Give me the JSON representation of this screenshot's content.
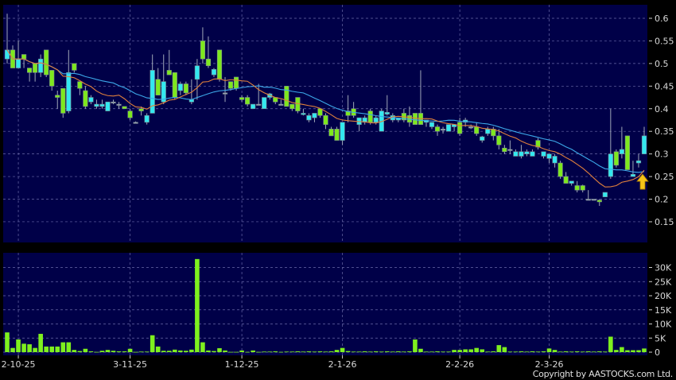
{
  "chart_data": [
    {
      "type": "candlestick",
      "panel": "price",
      "ylim": [
        0.1,
        0.63
      ],
      "y_ticks": [
        "0.15",
        "0.2",
        "0.25",
        "0.3",
        "0.35",
        "0.4",
        "0.45",
        "0.5",
        "0.55",
        "0.6"
      ],
      "grid": true,
      "colors": {
        "up": "#33e8f0",
        "down": "#7ee81e",
        "ma_short": "#e0803c",
        "ma_long": "#3ca8e8",
        "background": "#000048",
        "marker": "#f5c518"
      },
      "moving_averages": [
        "short",
        "long"
      ],
      "last_marker": "up-arrow",
      "ohlc": [
        [
          0.51,
          0.61,
          0.5,
          0.53
        ],
        [
          0.53,
          0.54,
          0.49,
          0.49
        ],
        [
          0.49,
          0.55,
          0.49,
          0.51
        ],
        [
          0.52,
          0.52,
          0.49,
          0.51
        ],
        [
          0.49,
          0.49,
          0.46,
          0.48
        ],
        [
          0.5,
          0.5,
          0.46,
          0.48
        ],
        [
          0.48,
          0.52,
          0.47,
          0.51
        ],
        [
          0.53,
          0.53,
          0.47,
          0.475
        ],
        [
          0.485,
          0.485,
          0.44,
          0.45
        ],
        [
          0.43,
          0.44,
          0.4,
          0.425
        ],
        [
          0.445,
          0.445,
          0.38,
          0.39
        ],
        [
          0.395,
          0.53,
          0.39,
          0.48
        ],
        [
          0.5,
          0.5,
          0.48,
          0.485
        ],
        [
          0.46,
          0.46,
          0.43,
          0.445
        ],
        [
          0.44,
          0.45,
          0.4,
          0.405
        ],
        [
          0.415,
          0.43,
          0.41,
          0.425
        ],
        [
          0.405,
          0.42,
          0.4,
          0.41
        ],
        [
          0.405,
          0.42,
          0.4,
          0.41
        ],
        [
          0.395,
          0.415,
          0.395,
          0.415
        ],
        [
          0.415,
          0.42,
          0.41,
          0.415
        ],
        [
          0.41,
          0.415,
          0.4,
          0.41
        ],
        [
          0.405,
          0.405,
          0.4,
          0.4
        ],
        [
          0.395,
          0.4,
          0.375,
          0.38
        ],
        [
          0.37,
          0.372,
          0.368,
          0.37
        ],
        [
          0.4,
          0.405,
          0.385,
          0.395
        ],
        [
          0.37,
          0.39,
          0.365,
          0.385
        ],
        [
          0.39,
          0.52,
          0.39,
          0.485
        ],
        [
          0.465,
          0.49,
          0.43,
          0.43
        ],
        [
          0.415,
          0.52,
          0.41,
          0.46
        ],
        [
          0.485,
          0.53,
          0.475,
          0.475
        ],
        [
          0.48,
          0.48,
          0.42,
          0.425
        ],
        [
          0.44,
          0.46,
          0.43,
          0.455
        ],
        [
          0.455,
          0.46,
          0.43,
          0.435
        ],
        [
          0.415,
          0.465,
          0.41,
          0.42
        ],
        [
          0.465,
          0.51,
          0.42,
          0.495
        ],
        [
          0.55,
          0.58,
          0.5,
          0.51
        ],
        [
          0.51,
          0.56,
          0.49,
          0.495
        ],
        [
          0.475,
          0.49,
          0.47,
          0.487
        ],
        [
          0.53,
          0.53,
          0.46,
          0.465
        ],
        [
          0.435,
          0.47,
          0.415,
          0.435
        ],
        [
          0.46,
          0.46,
          0.44,
          0.445
        ],
        [
          0.47,
          0.47,
          0.44,
          0.445
        ],
        [
          0.425,
          0.43,
          0.415,
          0.42
        ],
        [
          0.425,
          0.43,
          0.405,
          0.41
        ],
        [
          0.4,
          0.41,
          0.4,
          0.41
        ],
        [
          0.41,
          0.455,
          0.41,
          0.41
        ],
        [
          0.4,
          0.425,
          0.4,
          0.425
        ],
        [
          0.425,
          0.435,
          0.42,
          0.433
        ],
        [
          0.425,
          0.425,
          0.41,
          0.415
        ],
        [
          0.41,
          0.42,
          0.41,
          0.41
        ],
        [
          0.45,
          0.45,
          0.405,
          0.405
        ],
        [
          0.41,
          0.41,
          0.395,
          0.4
        ],
        [
          0.425,
          0.425,
          0.39,
          0.395
        ],
        [
          0.387,
          0.4,
          0.385,
          0.39
        ],
        [
          0.375,
          0.39,
          0.37,
          0.385
        ],
        [
          0.38,
          0.39,
          0.37,
          0.39
        ],
        [
          0.4,
          0.4,
          0.38,
          0.385
        ],
        [
          0.385,
          0.39,
          0.355,
          0.365
        ],
        [
          0.355,
          0.36,
          0.34,
          0.34
        ],
        [
          0.355,
          0.36,
          0.33,
          0.33
        ],
        [
          0.33,
          0.37,
          0.32,
          0.37
        ],
        [
          0.395,
          0.43,
          0.37,
          0.385
        ],
        [
          0.4,
          0.415,
          0.38,
          0.385
        ],
        [
          0.365,
          0.38,
          0.35,
          0.38
        ],
        [
          0.37,
          0.385,
          0.365,
          0.38
        ],
        [
          0.395,
          0.4,
          0.365,
          0.37
        ],
        [
          0.37,
          0.385,
          0.365,
          0.38
        ],
        [
          0.35,
          0.4,
          0.35,
          0.395
        ],
        [
          0.388,
          0.43,
          0.385,
          0.392
        ],
        [
          0.375,
          0.39,
          0.37,
          0.385
        ],
        [
          0.375,
          0.38,
          0.37,
          0.38
        ],
        [
          0.39,
          0.4,
          0.37,
          0.375
        ],
        [
          0.385,
          0.405,
          0.36,
          0.37
        ],
        [
          0.39,
          0.39,
          0.365,
          0.365
        ],
        [
          0.39,
          0.485,
          0.365,
          0.365
        ],
        [
          0.37,
          0.375,
          0.36,
          0.375
        ],
        [
          0.36,
          0.37,
          0.355,
          0.37
        ],
        [
          0.36,
          0.365,
          0.34,
          0.35
        ],
        [
          0.355,
          0.36,
          0.345,
          0.355
        ],
        [
          0.35,
          0.365,
          0.35,
          0.365
        ],
        [
          0.36,
          0.365,
          0.35,
          0.365
        ],
        [
          0.37,
          0.38,
          0.34,
          0.345
        ],
        [
          0.37,
          0.38,
          0.36,
          0.375
        ],
        [
          0.36,
          0.365,
          0.355,
          0.36
        ],
        [
          0.36,
          0.37,
          0.34,
          0.345
        ],
        [
          0.33,
          0.34,
          0.325,
          0.338
        ],
        [
          0.345,
          0.36,
          0.34,
          0.355
        ],
        [
          0.355,
          0.36,
          0.33,
          0.34
        ],
        [
          0.34,
          0.355,
          0.31,
          0.32
        ],
        [
          0.313,
          0.32,
          0.3,
          0.305
        ],
        [
          0.31,
          0.33,
          0.3,
          0.31
        ],
        [
          0.295,
          0.31,
          0.295,
          0.305
        ],
        [
          0.295,
          0.32,
          0.29,
          0.305
        ],
        [
          0.3,
          0.31,
          0.295,
          0.305
        ],
        [
          0.295,
          0.31,
          0.295,
          0.305
        ],
        [
          0.33,
          0.335,
          0.31,
          0.315
        ],
        [
          0.295,
          0.3,
          0.29,
          0.305
        ],
        [
          0.29,
          0.3,
          0.28,
          0.3
        ],
        [
          0.28,
          0.3,
          0.27,
          0.295
        ],
        [
          0.28,
          0.285,
          0.245,
          0.25
        ],
        [
          0.25,
          0.26,
          0.235,
          0.235
        ],
        [
          0.235,
          0.24,
          0.23,
          0.24
        ],
        [
          0.23,
          0.24,
          0.215,
          0.22
        ],
        [
          0.23,
          0.232,
          0.215,
          0.22
        ],
        [
          0.2,
          0.22,
          0.2,
          0.2
        ],
        [
          0.2,
          0.2,
          0.2,
          0.2
        ],
        [
          0.198,
          0.2,
          0.185,
          0.194
        ],
        [
          0.205,
          0.215,
          0.205,
          0.215
        ],
        [
          0.25,
          0.4,
          0.245,
          0.3
        ],
        [
          0.305,
          0.31,
          0.27,
          0.275
        ],
        [
          0.3,
          0.36,
          0.29,
          0.31
        ],
        [
          0.34,
          0.34,
          0.265,
          0.265
        ],
        [
          0.25,
          0.285,
          0.25,
          0.255
        ],
        [
          0.28,
          0.3,
          0.27,
          0.285
        ],
        [
          0.3,
          0.36,
          0.3,
          0.34
        ]
      ]
    },
    {
      "type": "bar",
      "panel": "volume",
      "ylim": [
        0,
        35000
      ],
      "y_ticks": [
        "0",
        "5K",
        "10K",
        "15K",
        "20K",
        "25K",
        "30K"
      ],
      "grid": true,
      "color": "#7ef01e",
      "values": [
        7000,
        1500,
        4500,
        3000,
        2800,
        1500,
        6500,
        2000,
        2000,
        2000,
        3500,
        3500,
        800,
        400,
        1200,
        300,
        100,
        500,
        800,
        500,
        300,
        300,
        1200,
        100,
        200,
        200,
        6000,
        2000,
        500,
        500,
        900,
        600,
        500,
        900,
        33000,
        3500,
        600,
        400,
        1400,
        600,
        100,
        100,
        600,
        100,
        600,
        100,
        200,
        200,
        300,
        100,
        200,
        200,
        300,
        200,
        300,
        200,
        300,
        200,
        300,
        800,
        1500,
        400,
        200,
        200,
        300,
        200,
        300,
        200,
        300,
        200,
        300,
        200,
        300,
        4500,
        1200,
        200,
        200,
        300,
        200,
        200,
        800,
        800,
        1000,
        1000,
        1500,
        1000,
        200,
        300,
        2500,
        1800,
        200,
        200,
        300,
        200,
        300,
        200,
        300,
        1300,
        800,
        200,
        300,
        200,
        300,
        200,
        300,
        200,
        300,
        200,
        5500,
        800,
        1800,
        700,
        700,
        700,
        1300
      ]
    }
  ],
  "x_axis": {
    "tick_labels": [
      "2-10-25",
      "3-11-25",
      "1-12-25",
      "2-1-26",
      "2-2-26",
      "2-3-26"
    ],
    "tick_indices": [
      2,
      22,
      42,
      60,
      81,
      97
    ]
  },
  "copyright": "Copyright by AASTOCKS.com Ltd."
}
